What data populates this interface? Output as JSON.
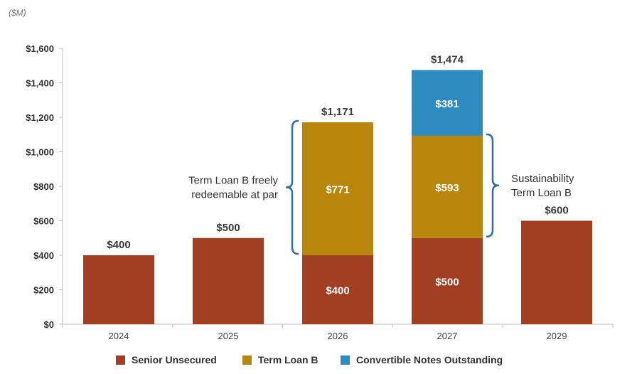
{
  "chart_data": {
    "type": "bar",
    "stacked": true,
    "unit_label": "($M)",
    "categories": [
      "2024",
      "2025",
      "2026",
      "2027",
      "2029"
    ],
    "series": [
      {
        "name": "Senior Unsecured",
        "color": "#A23E22",
        "values": [
          400,
          500,
          400,
          500,
          600
        ],
        "labels": [
          "",
          "",
          "$400",
          "$500",
          ""
        ]
      },
      {
        "name": "Term Loan B",
        "color": "#B8860B",
        "values": [
          0,
          0,
          771,
          593,
          0
        ],
        "labels": [
          "",
          "",
          "$771",
          "$593",
          ""
        ]
      },
      {
        "name": "Convertible Notes Outstanding",
        "color": "#2E8BC0",
        "values": [
          0,
          0,
          0,
          381,
          0
        ],
        "labels": [
          "",
          "",
          "",
          "$381",
          ""
        ]
      }
    ],
    "totals": [
      "$400",
      "$500",
      "$1,171",
      "$1,474",
      "$600"
    ],
    "ylim": [
      0,
      1600
    ],
    "yticks": [
      0,
      200,
      400,
      600,
      800,
      1000,
      1200,
      1400,
      1600
    ],
    "ytick_labels": [
      "$0",
      "$200",
      "$400",
      "$600",
      "$800",
      "$1,000",
      "$1,200",
      "$1,400",
      "$1,600"
    ],
    "annotations": [
      {
        "lines": [
          "Term Loan B freely",
          "redeemable at par"
        ],
        "category": "2026",
        "series": "Term Loan B",
        "side": "left"
      },
      {
        "lines": [
          "Sustainability",
          "Term Loan B"
        ],
        "category": "2027",
        "series": "Term Loan B",
        "side": "right"
      }
    ],
    "legend_position": "bottom",
    "grid": false,
    "bracket_color": "#2F6DA8"
  }
}
